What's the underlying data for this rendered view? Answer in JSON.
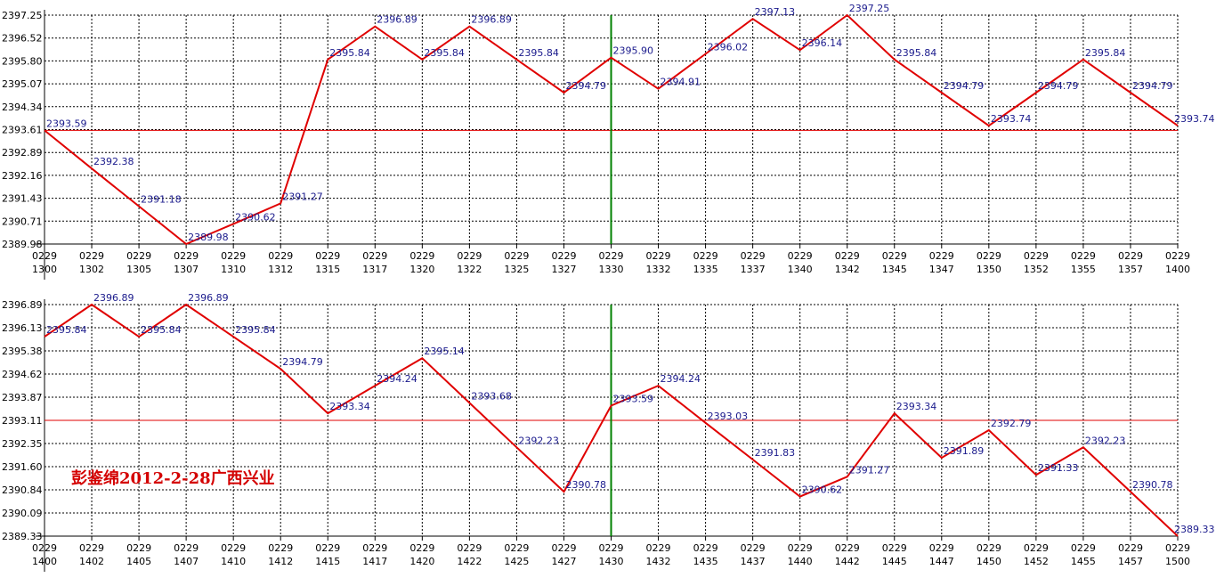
{
  "chart_data": [
    {
      "type": "line",
      "y_tick_labels": [
        "2397.25",
        "2396.52",
        "2395.80",
        "2395.07",
        "2394.34",
        "2393.61",
        "2392.89",
        "2392.16",
        "2391.43",
        "2390.71",
        "2389.98"
      ],
      "ylim": [
        2389.98,
        2397.25
      ],
      "x_tick_dates": [
        "0229",
        "0229",
        "0229",
        "0229",
        "0229",
        "0229",
        "0229",
        "0229",
        "0229",
        "0229",
        "0229",
        "0229",
        "0229",
        "0229",
        "0229",
        "0229",
        "0229",
        "0229",
        "0229",
        "0229",
        "0229",
        "0229",
        "0229",
        "0229",
        "0229"
      ],
      "x_tick_times": [
        "1300",
        "1302",
        "1305",
        "1307",
        "1310",
        "1312",
        "1315",
        "1317",
        "1320",
        "1322",
        "1325",
        "1327",
        "1330",
        "1332",
        "1335",
        "1337",
        "1340",
        "1342",
        "1345",
        "1347",
        "1350",
        "1352",
        "1355",
        "1357",
        "1400"
      ],
      "values": [
        2393.59,
        2392.38,
        2391.18,
        2389.98,
        2390.62,
        2391.27,
        2395.84,
        2396.89,
        2395.84,
        2396.89,
        2395.84,
        2394.79,
        2395.9,
        2394.91,
        2396.02,
        2397.13,
        2396.14,
        2397.25,
        2395.84,
        2394.79,
        2393.74,
        2394.79,
        2395.84,
        2394.79,
        2393.74
      ],
      "point_labels": [
        "2393.59",
        "2392.38",
        "2391.18",
        "2389.98",
        "2390.62",
        "2391.27",
        "2395.84",
        "2396.89",
        "2395.84",
        "2396.89",
        "2395.84",
        "2394.79",
        "2395.90",
        "2394.91",
        "2396.02",
        "2397.13",
        "2396.14",
        "2397.25",
        "2395.84",
        "2394.79",
        "2393.74",
        "2394.79",
        "2395.84",
        "2394.79",
        "2393.74"
      ],
      "reference_line": 2393.59,
      "vertical_marker_index": 12,
      "grid": true,
      "colors": {
        "line": "#e00000",
        "reference": "#e00000",
        "marker": "#008000",
        "labels": "#1a1a8c",
        "grid": "#000000"
      }
    },
    {
      "type": "line",
      "y_tick_labels": [
        "2396.89",
        "2396.13",
        "2395.38",
        "2394.62",
        "2393.87",
        "2393.11",
        "2392.35",
        "2391.60",
        "2390.84",
        "2390.09",
        "2389.33"
      ],
      "ylim": [
        2389.33,
        2396.89
      ],
      "x_tick_dates": [
        "0229",
        "0229",
        "0229",
        "0229",
        "0229",
        "0229",
        "0229",
        "0229",
        "0229",
        "0229",
        "0229",
        "0229",
        "0229",
        "0229",
        "0229",
        "0229",
        "0229",
        "0229",
        "0229",
        "0229",
        "0229",
        "0229",
        "0229",
        "0229",
        "0229"
      ],
      "x_tick_times": [
        "1400",
        "1402",
        "1405",
        "1407",
        "1410",
        "1412",
        "1415",
        "1417",
        "1420",
        "1422",
        "1425",
        "1427",
        "1430",
        "1432",
        "1435",
        "1437",
        "1440",
        "1442",
        "1445",
        "1447",
        "1450",
        "1452",
        "1455",
        "1457",
        "1500"
      ],
      "values": [
        2395.84,
        2396.89,
        2395.84,
        2396.89,
        2395.84,
        2394.79,
        2393.34,
        2394.24,
        2395.14,
        2393.68,
        2392.23,
        2390.78,
        2393.59,
        2394.24,
        2393.03,
        2391.83,
        2390.62,
        2391.27,
        2393.34,
        2391.89,
        2392.79,
        2391.33,
        2392.23,
        2390.78,
        2389.33
      ],
      "point_labels": [
        "2395.84",
        "2396.89",
        "2395.84",
        "2396.89",
        "2395.84",
        "2394.79",
        "2393.34",
        "2394.24",
        "2395.14",
        "2393.68",
        "2392.23",
        "2390.78",
        "2393.59",
        "2394.24",
        "2393.03",
        "2391.83",
        "2390.62",
        "2391.27",
        "2393.34",
        "2391.89",
        "2392.79",
        "2391.33",
        "2392.23",
        "2390.78",
        "2389.33"
      ],
      "reference_line": 2393.11,
      "vertical_marker_index": 12,
      "grid": true,
      "colors": {
        "line": "#e00000",
        "reference": "#e00000",
        "marker": "#008000",
        "labels": "#1a1a8c",
        "grid": "#000000"
      }
    }
  ],
  "annotation": {
    "text": "彭鉴绵2012-2-28广西兴业",
    "color": "#d40000"
  }
}
